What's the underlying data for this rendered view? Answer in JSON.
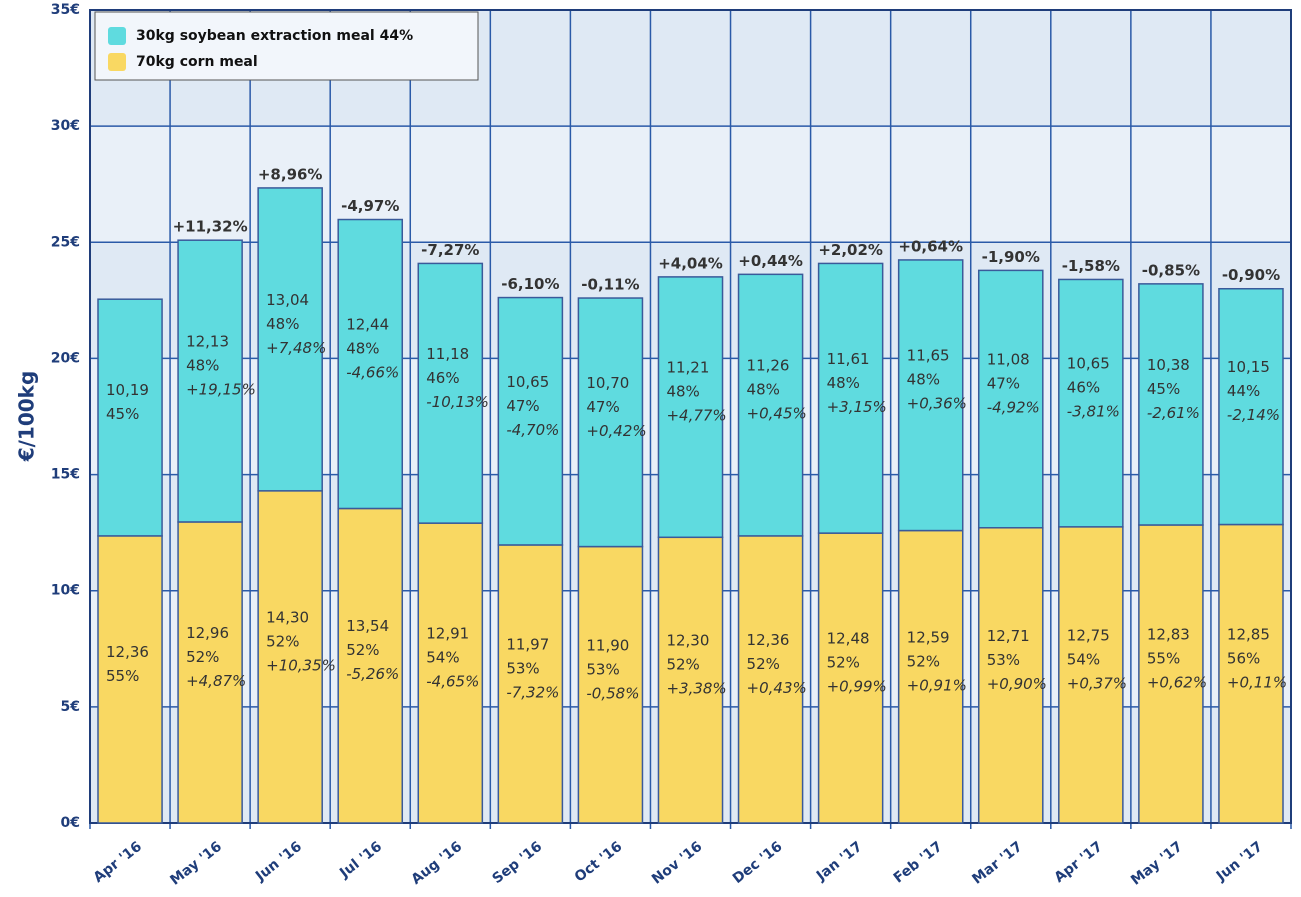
{
  "chart_data": {
    "type": "stacked_bar",
    "ylabel": "€/100kg",
    "categories": [
      "Apr '16",
      "May '16",
      "Jun '16",
      "Jul '16",
      "Aug '16",
      "Sep '16",
      "Oct '16",
      "Nov '16",
      "Dec '16",
      "Jan '17",
      "Feb '17",
      "Mar '17",
      "Apr '17",
      "May '17",
      "Jun '17"
    ],
    "series": [
      {
        "name": "70kg corn meal",
        "color": "#f9d862",
        "values": [
          12.36,
          12.96,
          14.3,
          13.54,
          12.91,
          11.97,
          11.9,
          12.3,
          12.36,
          12.48,
          12.59,
          12.71,
          12.75,
          12.83,
          12.85
        ],
        "value_labels": [
          "12,36",
          "12,96",
          "14,30",
          "13,54",
          "12,91",
          "11,97",
          "11,90",
          "12,30",
          "12,36",
          "12,48",
          "12,59",
          "12,71",
          "12,75",
          "12,83",
          "12,85"
        ],
        "share_labels": [
          "55%",
          "52%",
          "52%",
          "52%",
          "54%",
          "53%",
          "53%",
          "52%",
          "52%",
          "52%",
          "52%",
          "53%",
          "54%",
          "55%",
          "56%"
        ],
        "change_labels": [
          null,
          "+4,87%",
          "+10,35%",
          "-5,26%",
          "-4,65%",
          "-7,32%",
          "-0,58%",
          "+3,38%",
          "+0,43%",
          "+0,99%",
          "+0,91%",
          "+0,90%",
          "+0,37%",
          "+0,62%",
          "+0,11%"
        ]
      },
      {
        "name": "30kg soybean extraction meal 44%",
        "color": "#5fdbdf",
        "values": [
          10.19,
          12.13,
          13.04,
          12.44,
          11.18,
          10.65,
          10.7,
          11.21,
          11.26,
          11.61,
          11.65,
          11.08,
          10.65,
          10.38,
          10.15
        ],
        "value_labels": [
          "10,19",
          "12,13",
          "13,04",
          "12,44",
          "11,18",
          "10,65",
          "10,70",
          "11,21",
          "11,26",
          "11,61",
          "11,65",
          "11,08",
          "10,65",
          "10,38",
          "10,15"
        ],
        "share_labels": [
          "45%",
          "48%",
          "48%",
          "48%",
          "46%",
          "47%",
          "47%",
          "48%",
          "48%",
          "48%",
          "48%",
          "47%",
          "46%",
          "45%",
          "44%"
        ],
        "change_labels": [
          null,
          "+19,15%",
          "+7,48%",
          "-4,66%",
          "-10,13%",
          "-4,70%",
          "+0,42%",
          "+4,77%",
          "+0,45%",
          "+3,15%",
          "+0,36%",
          "-4,92%",
          "-3,81%",
          "-2,61%",
          "-2,14%"
        ]
      }
    ],
    "total_change_labels": [
      null,
      "+11,32%",
      "+8,96%",
      "-4,97%",
      "-7,27%",
      "-6,10%",
      "-0,11%",
      "+4,04%",
      "+0,44%",
      "+2,02%",
      "+0,64%",
      "-1,90%",
      "-1,58%",
      "-0,85%",
      "-0,90%"
    ],
    "positive_color": "#118811",
    "negative_color": "#aa1111",
    "ylim": [
      0,
      35
    ],
    "yticks": [
      {
        "value": 0,
        "label": "0€"
      },
      {
        "value": 5,
        "label": "5€"
      },
      {
        "value": 10,
        "label": "10€"
      },
      {
        "value": 15,
        "label": "15€"
      },
      {
        "value": 20,
        "label": "20€"
      },
      {
        "value": 25,
        "label": "25€"
      },
      {
        "value": 30,
        "label": "30€"
      },
      {
        "value": 35,
        "label": "35€"
      }
    ],
    "grid": true,
    "legend": "upper left"
  }
}
